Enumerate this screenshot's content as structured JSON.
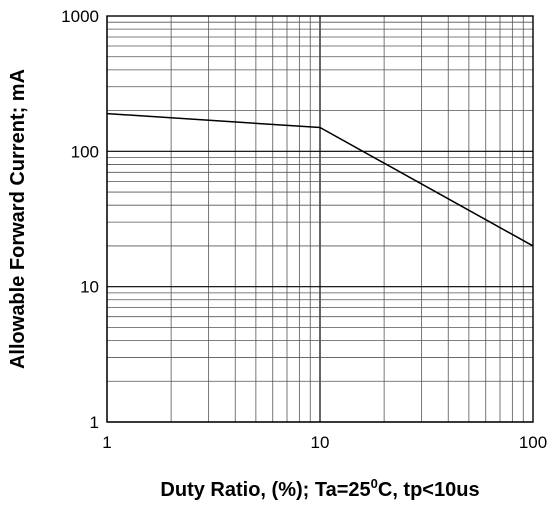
{
  "chart_data": {
    "type": "line",
    "title": "",
    "xlabel": "Duty Ratio, (%); Ta=25",
    "xlabel_superscript": "0",
    "xlabel_suffix": "C, tp<10us",
    "ylabel": "Allowable Forward Current; mA",
    "x_scale": "log",
    "y_scale": "log",
    "xlim": [
      1,
      100
    ],
    "ylim": [
      1,
      1000
    ],
    "x_ticks": [
      1,
      10,
      100
    ],
    "x_tick_labels": [
      "1",
      "10",
      "100"
    ],
    "y_ticks": [
      1,
      10,
      100,
      1000
    ],
    "y_tick_labels": [
      "1",
      "10",
      "100",
      "1000"
    ],
    "grid": true,
    "series": [
      {
        "x": [
          1,
          10,
          100
        ],
        "y": [
          190,
          150,
          20
        ]
      }
    ],
    "colors": {
      "line": "#000000",
      "grid": "#555555",
      "frame": "#000000"
    }
  }
}
